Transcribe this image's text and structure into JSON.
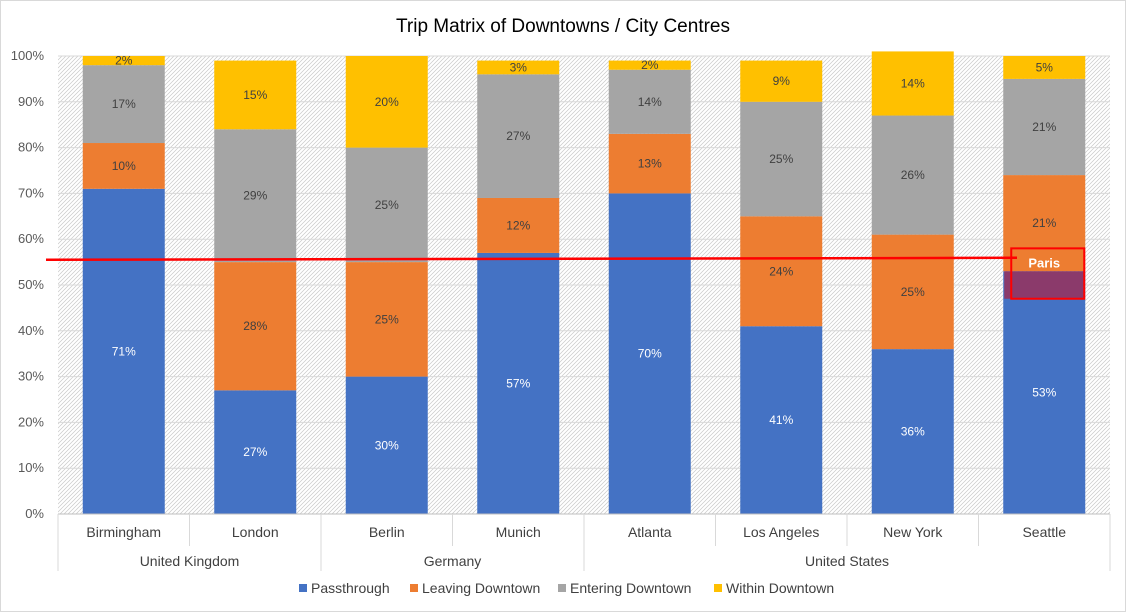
{
  "chart_data": {
    "type": "bar",
    "stacked": true,
    "percent_stacked": true,
    "title": "Trip Matrix of Downtowns / City Centres",
    "xlabel": "",
    "ylabel": "",
    "ylim": [
      0,
      100
    ],
    "yticks": [
      "0%",
      "10%",
      "20%",
      "30%",
      "40%",
      "50%",
      "60%",
      "70%",
      "80%",
      "90%",
      "100%"
    ],
    "categories": [
      "Birmingham",
      "London",
      "Berlin",
      "Munich",
      "Atlanta",
      "Los Angeles",
      "New York",
      "Seattle"
    ],
    "groups": [
      {
        "label": "United Kingdom",
        "members": [
          "Birmingham",
          "London"
        ]
      },
      {
        "label": "Germany",
        "members": [
          "Berlin",
          "Munich"
        ]
      },
      {
        "label": "United States",
        "members": [
          "Atlanta",
          "Los Angeles",
          "New York",
          "Seattle"
        ]
      }
    ],
    "series": [
      {
        "name": "Passthrough",
        "color": "#4472c4",
        "label_color": "#ffffff",
        "values": [
          71,
          27,
          30,
          57,
          70,
          41,
          36,
          53
        ],
        "labels": [
          "71%",
          "27%",
          "30%",
          "57%",
          "70%",
          "41%",
          "36%",
          "53%"
        ]
      },
      {
        "name": "Leaving Downtown",
        "color": "#ed7d31",
        "label_color": "#404040",
        "values": [
          10,
          28,
          25,
          12,
          13,
          24,
          25,
          21
        ],
        "labels": [
          "10%",
          "28%",
          "25%",
          "12%",
          "13%",
          "24%",
          "25%",
          "21%"
        ]
      },
      {
        "name": "Entering Downtown",
        "color": "#a5a5a5",
        "label_color": "#404040",
        "values": [
          17,
          29,
          25,
          27,
          14,
          25,
          26,
          21
        ],
        "labels": [
          "17%",
          "29%",
          "25%",
          "27%",
          "14%",
          "25%",
          "26%",
          "21%"
        ]
      },
      {
        "name": "Within Downtown",
        "color": "#ffc000",
        "label_color": "#404040",
        "values": [
          2,
          15,
          20,
          3,
          2,
          9,
          14,
          5
        ],
        "labels": [
          "2%",
          "15%",
          "20%",
          "3%",
          "2%",
          "9%",
          "14%",
          "5%"
        ]
      }
    ],
    "grid": true,
    "legend_position": "bottom",
    "annotations": {
      "reference_line": {
        "value": 55.5,
        "color": "#ff0000"
      },
      "highlight": {
        "category": "Seattle",
        "text": "Paris",
        "from": 47,
        "to": 58,
        "border_color": "#ff0000",
        "fill_color": "#8b3a6b"
      }
    }
  }
}
